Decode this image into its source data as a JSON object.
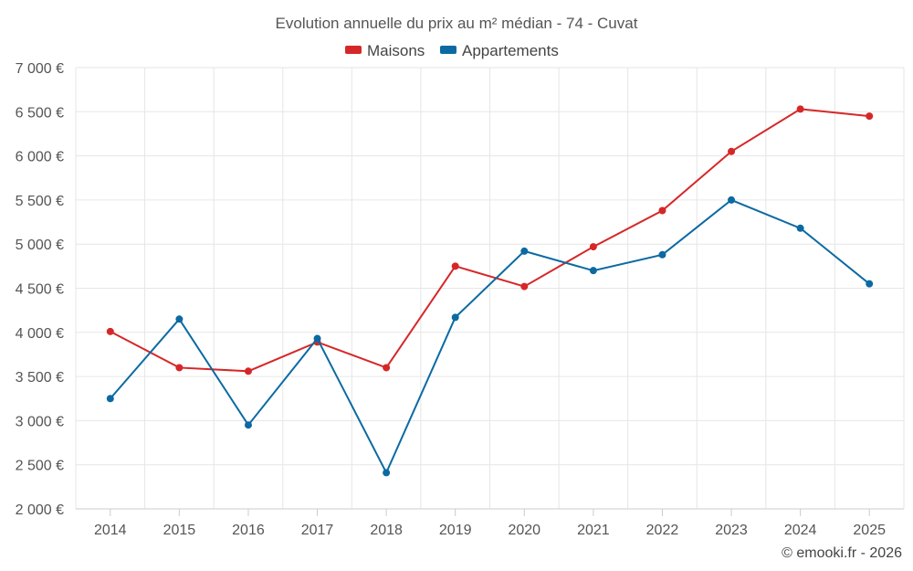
{
  "chart_data": {
    "type": "line",
    "title": "Evolution annuelle du prix au m² médian - 74 - Cuvat",
    "categories": [
      "2014",
      "2015",
      "2016",
      "2017",
      "2018",
      "2019",
      "2020",
      "2021",
      "2022",
      "2023",
      "2024",
      "2025"
    ],
    "series": [
      {
        "name": "Maisons",
        "color": "#d62728",
        "values": [
          4010,
          3600,
          3560,
          3890,
          3600,
          4750,
          4520,
          4970,
          5380,
          6050,
          6530,
          6450
        ]
      },
      {
        "name": "Appartements",
        "color": "#0b6aa2",
        "values": [
          3250,
          4150,
          2950,
          3930,
          2410,
          4170,
          4920,
          4700,
          4880,
          5500,
          5180,
          4550
        ]
      }
    ],
    "ylim": [
      2000,
      7000
    ],
    "yticks": [
      2000,
      2500,
      3000,
      3500,
      4000,
      4500,
      5000,
      5500,
      6000,
      6500,
      7000
    ],
    "ytick_labels": [
      "2 000 €",
      "2 500 €",
      "3 000 €",
      "3 500 €",
      "4 000 €",
      "4 500 €",
      "5 000 €",
      "5 500 €",
      "6 000 €",
      "6 500 €",
      "7 000 €"
    ],
    "xlabel": "",
    "ylabel": "",
    "grid": true,
    "legend_position": "top-center"
  },
  "credit": "© emooki.fr - 2026"
}
